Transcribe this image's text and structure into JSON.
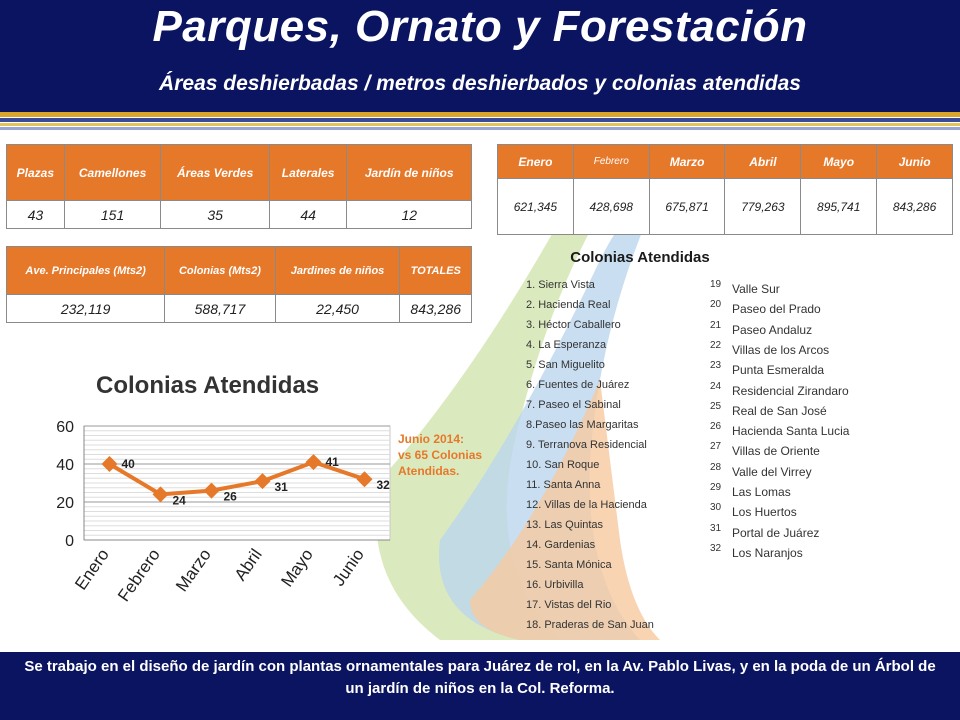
{
  "header": {
    "title": "Parques, Ornato y Forestación",
    "subtitle": "Áreas deshierbadas / metros deshierbados y colonias atendidas"
  },
  "table_areas": {
    "headers": [
      "Plazas",
      "Camellones",
      "Áreas Verdes",
      "Laterales",
      "Jardín de niños"
    ],
    "values": [
      "43",
      "151",
      "35",
      "44",
      "12"
    ]
  },
  "table_months": {
    "headers": [
      "Enero",
      "Febrero",
      "Marzo",
      "Abril",
      "Mayo",
      "Junio"
    ],
    "values": [
      "621,345",
      "428,698",
      "675,871",
      "779,263",
      "895,741",
      "843,286"
    ]
  },
  "table_totals": {
    "headers": [
      "Ave. Principales (Mts2)",
      "Colonias (Mts2)",
      "Jardines de niños",
      "TOTALES"
    ],
    "values": [
      "232,119",
      "588,717",
      "22,450",
      "843,286"
    ]
  },
  "colonias": {
    "title": "Colonias Atendidas",
    "left": [
      "1. Sierra Vista",
      "2. Hacienda Real",
      "3. Héctor Caballero",
      "4.  La Esperanza",
      "5.  San Miguelito",
      "6.  Fuentes de Juárez",
      "7. Paseo el Sabinal",
      "8.Paseo las Margaritas",
      "9. Terranova Residencial",
      "10. San Roque",
      "11. Santa Anna",
      "12. Villas de la Hacienda",
      "13. Las Quintas",
      "14. Gardenias",
      "15. Santa Mónica",
      "16. Urbivilla",
      "17. Vistas del Rio",
      "18. Praderas de San Juan"
    ],
    "right_numbers": [
      "19",
      "20",
      "21",
      "22",
      "23",
      "24",
      "25",
      "26",
      "27",
      "28",
      "29",
      "30",
      "31",
      "32"
    ],
    "right": [
      "Valle Sur",
      "Paseo del Prado",
      "Paseo Andaluz",
      "Villas de los Arcos",
      "Punta Esmeralda",
      "Residencial Zirandaro",
      "Real de San José",
      "Hacienda Santa Lucia",
      "Villas de Oriente",
      "Valle del Virrey",
      "Las Lomas",
      "Los Huertos",
      "Portal de Juárez",
      "Los Naranjos"
    ]
  },
  "note": {
    "line1": "Junio 2014:",
    "line2": "vs 65 Colonias",
    "line3": "Atendidas."
  },
  "chart_data": {
    "type": "line",
    "title": "Colonias Atendidas",
    "categories": [
      "Enero",
      "Febrero",
      "Marzo",
      "Abril",
      "Mayo",
      "Junio"
    ],
    "values": [
      40,
      24,
      26,
      31,
      41,
      32
    ],
    "ylim": [
      0,
      60
    ],
    "yticks": [
      0,
      20,
      40,
      60
    ],
    "grid": true,
    "line_color": "#e6782a"
  },
  "footer": {
    "text": "Se trabajo  en el diseño de jardín con plantas ornamentales para Juárez de rol, en  la Av. Pablo Livas, y en la poda de un Árbol de un jardín de niños en la Col. Reforma."
  }
}
